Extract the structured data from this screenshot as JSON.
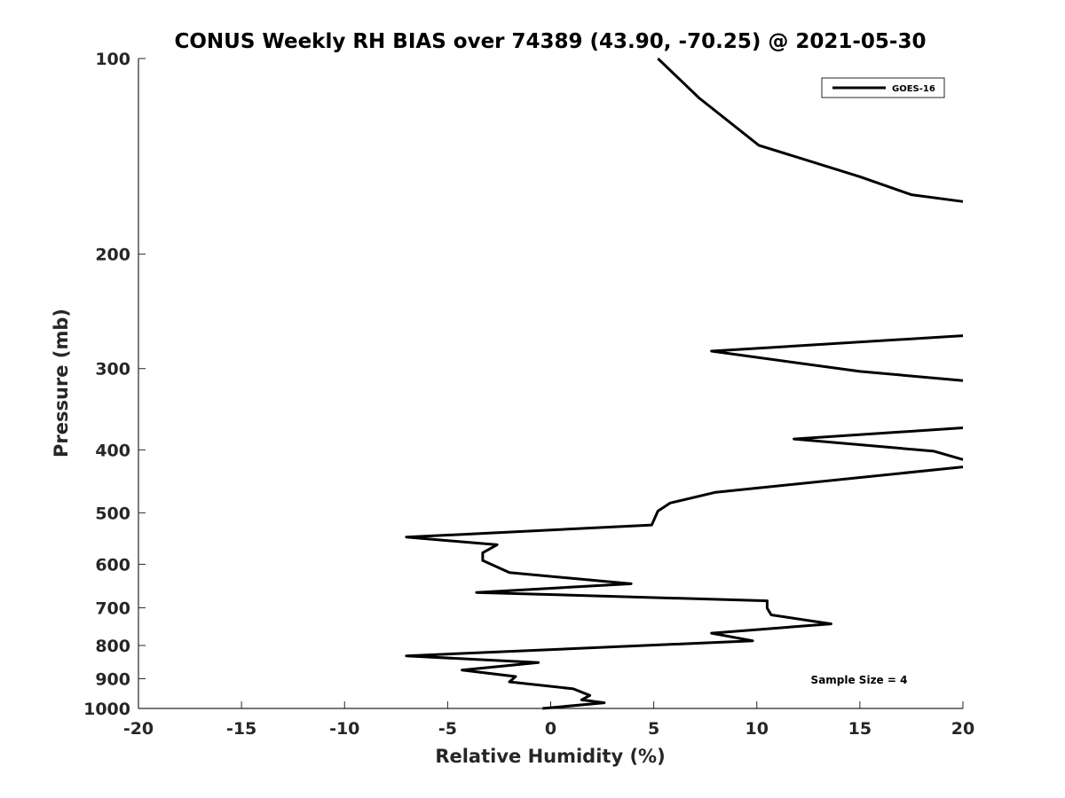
{
  "chart_data": {
    "type": "line",
    "title": "CONUS Weekly RH BIAS over 74389 (43.90, -70.25) @ 2021-05-30",
    "xlabel": "Relative Humidity (%)",
    "ylabel": "Pressure (mb)",
    "xlim": [
      -20,
      20
    ],
    "ylim": [
      100,
      1000
    ],
    "y_scale": "log",
    "y_reversed": true,
    "x_ticks": [
      "-20",
      "-15",
      "-10",
      "-5",
      "0",
      "5",
      "10",
      "15",
      "20"
    ],
    "y_ticks": [
      "100",
      "200",
      "300",
      "400",
      "500",
      "600",
      "700",
      "800",
      "900",
      "1000"
    ],
    "grid": false,
    "legend": {
      "position": "top-right",
      "entries": [
        "GOES-16"
      ]
    },
    "annotation": "Sample Size = 4",
    "line_color": "#000000",
    "series": [
      {
        "name": "GOES-16",
        "points": [
          [
            5.2,
            100
          ],
          [
            7.2,
            115
          ],
          [
            10.1,
            136
          ],
          [
            15.0,
            152
          ],
          [
            17.5,
            162
          ],
          [
            20,
            166
          ],
          [
            null,
            null
          ],
          [
            20,
            267
          ],
          [
            7.8,
            282
          ],
          [
            15.0,
            303
          ],
          [
            20,
            313
          ],
          [
            null,
            null
          ],
          [
            20,
            370
          ],
          [
            11.8,
            385
          ],
          [
            18.6,
            402
          ],
          [
            20,
            414
          ],
          [
            null,
            null
          ],
          [
            20,
            425
          ],
          [
            8.0,
            465
          ],
          [
            5.8,
            483
          ],
          [
            5.2,
            497
          ],
          [
            4.9,
            522
          ],
          [
            -7.0,
            545
          ],
          [
            -2.6,
            560
          ],
          [
            -3.3,
            576
          ],
          [
            -3.3,
            592
          ],
          [
            -2.0,
            618
          ],
          [
            3.9,
            643
          ],
          [
            -3.6,
            663
          ],
          [
            10.5,
            683
          ],
          [
            10.5,
            701
          ],
          [
            10.7,
            718
          ],
          [
            13.6,
            741
          ],
          [
            7.8,
            766
          ],
          [
            9.8,
            787
          ],
          [
            -7.0,
            830
          ],
          [
            -0.6,
            850
          ],
          [
            -4.3,
            873
          ],
          [
            -1.7,
            893
          ],
          [
            -2.0,
            910
          ],
          [
            1.1,
            933
          ],
          [
            1.9,
            955
          ],
          [
            1.5,
            970
          ],
          [
            2.6,
            980
          ],
          [
            -0.4,
            1000
          ]
        ]
      }
    ]
  }
}
